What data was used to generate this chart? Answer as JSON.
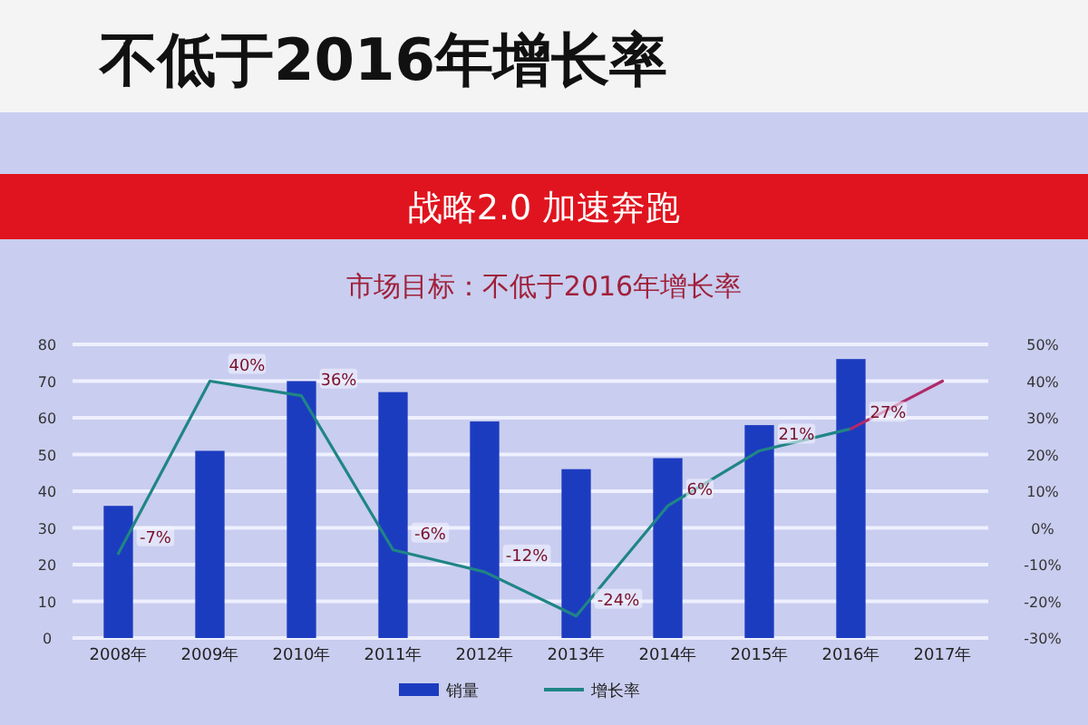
{
  "chart_data": {
    "type": "bar",
    "title": "市场目标：不低于2016年增长率",
    "annotations": [
      "不低于2016年增长率",
      "战略2.0  加速奔跑"
    ],
    "categories": [
      "2008年",
      "2009年",
      "2010年",
      "2011年",
      "2012年",
      "2013年",
      "2014年",
      "2015年",
      "2016年",
      "2017年"
    ],
    "series": [
      {
        "name": "销量",
        "color": "#1c3cc0",
        "values": [
          36,
          51,
          70,
          67,
          59,
          46,
          49,
          58,
          76,
          null
        ]
      },
      {
        "name": "增长率",
        "type": "line",
        "axis": "y2",
        "color": "#1f8585",
        "values": [
          -7,
          40,
          36,
          -6,
          -12,
          -24,
          6,
          21,
          27,
          null
        ],
        "value_labels": [
          "-7%",
          "40%",
          "36%",
          "-6%",
          "-12%",
          "-24%",
          "6%",
          "21%",
          "27%",
          null
        ]
      },
      {
        "type": "line",
        "axis": "y2",
        "color": "#b02a6a",
        "values": [
          null,
          null,
          null,
          null,
          null,
          null,
          null,
          null,
          27,
          40
        ]
      }
    ],
    "ylim": [
      0,
      80
    ],
    "yticks": [
      0,
      10,
      20,
      30,
      40,
      50,
      60,
      70,
      80
    ],
    "y2lim": [
      -30,
      50
    ],
    "y2ticks": [
      {
        "value": -30,
        "label": "-30%"
      },
      {
        "value": -20,
        "label": "-20%"
      },
      {
        "value": -10,
        "label": "-10%"
      },
      {
        "value": 0,
        "label": "0%"
      },
      {
        "value": 10,
        "label": "10%"
      },
      {
        "value": 20,
        "label": "20%"
      },
      {
        "value": 30,
        "label": "30%"
      },
      {
        "value": 40,
        "label": "40%"
      },
      {
        "value": 50,
        "label": "50%"
      }
    ],
    "grid": "y",
    "legend": "bottom"
  }
}
